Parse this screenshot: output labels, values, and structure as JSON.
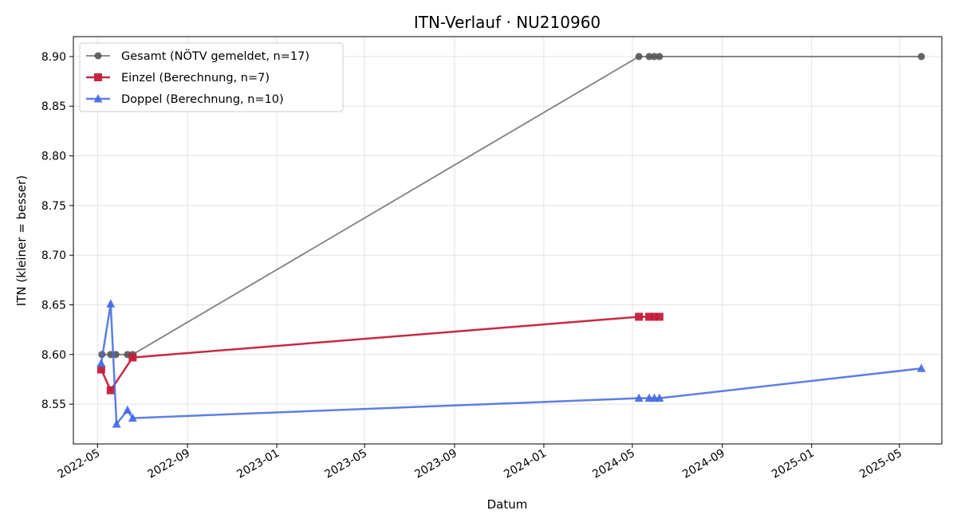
{
  "chart_data": {
    "type": "line",
    "title": "ITN-Verlauf · NU210960",
    "xlabel": "Datum",
    "ylabel": "ITN  (kleiner = besser)",
    "x_axis": "date",
    "xlim": [
      "2022-03-29",
      "2025-06-28"
    ],
    "ylim": [
      8.51,
      8.92
    ],
    "x_ticks": [
      "2022-05",
      "2022-09",
      "2023-01",
      "2023-05",
      "2023-09",
      "2024-01",
      "2024-05",
      "2024-09",
      "2025-01",
      "2025-05"
    ],
    "y_ticks": [
      "8.55",
      "8.60",
      "8.65",
      "8.70",
      "8.75",
      "8.80",
      "8.85",
      "8.90"
    ],
    "grid": true,
    "legend_position": "top-left",
    "series": [
      {
        "name": "Gesamt (NÖTV gemeldet, n=17)",
        "color": "#555555",
        "marker": "circle",
        "x": [
          "2022-05-07",
          "2022-05-19",
          "2022-05-26",
          "2022-06-11",
          "2022-06-18",
          "2024-05-10",
          "2024-05-24",
          "2024-05-31",
          "2024-06-07",
          "2025-05-31"
        ],
        "y": [
          8.6,
          8.6,
          8.6,
          8.6,
          8.6,
          8.9,
          8.9,
          8.9,
          8.9,
          8.9
        ]
      },
      {
        "name": "Einzel (Berechnung, n=7)",
        "color": "#c41e3a",
        "marker": "square",
        "x": [
          "2022-05-06",
          "2022-05-19",
          "2022-06-18",
          "2024-05-10",
          "2024-05-24",
          "2024-05-31",
          "2024-06-07"
        ],
        "y": [
          8.585,
          8.564,
          8.597,
          8.638,
          8.638,
          8.638,
          8.638
        ]
      },
      {
        "name": "Doppel (Berechnung, n=10)",
        "color": "#4169e1",
        "marker": "triangle",
        "x": [
          "2022-05-06",
          "2022-05-19",
          "2022-05-27",
          "2022-06-11",
          "2022-06-18",
          "2024-05-10",
          "2024-05-24",
          "2024-05-31",
          "2024-06-07",
          "2025-05-31"
        ],
        "y": [
          8.591,
          8.651,
          8.53,
          8.544,
          8.536,
          8.556,
          8.556,
          8.556,
          8.556,
          8.586
        ]
      }
    ]
  }
}
